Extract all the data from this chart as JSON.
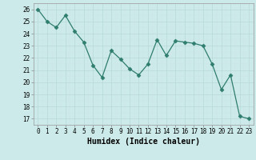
{
  "x": [
    0,
    1,
    2,
    3,
    4,
    5,
    6,
    7,
    8,
    9,
    10,
    11,
    12,
    13,
    14,
    15,
    16,
    17,
    18,
    19,
    20,
    21,
    22,
    23
  ],
  "y": [
    26,
    25,
    24.5,
    25.5,
    24.2,
    23.3,
    21.4,
    20.4,
    22.6,
    21.9,
    21.1,
    20.6,
    21.5,
    23.5,
    22.2,
    23.4,
    23.3,
    23.2,
    23.0,
    21.5,
    19.4,
    20.6,
    17.2,
    17.0
  ],
  "line_color": "#2e7d6e",
  "marker": "D",
  "marker_size": 2.5,
  "bg_color": "#cdeaea",
  "grid_major_color": "#b8d8d8",
  "grid_minor_color": "#cce5e5",
  "xlabel": "Humidex (Indice chaleur)",
  "xlim": [
    -0.5,
    23.5
  ],
  "ylim": [
    16.5,
    26.5
  ],
  "yticks": [
    17,
    18,
    19,
    20,
    21,
    22,
    23,
    24,
    25,
    26
  ],
  "xticks": [
    0,
    1,
    2,
    3,
    4,
    5,
    6,
    7,
    8,
    9,
    10,
    11,
    12,
    13,
    14,
    15,
    16,
    17,
    18,
    19,
    20,
    21,
    22,
    23
  ],
  "tick_fontsize": 5.5,
  "label_fontsize": 7
}
